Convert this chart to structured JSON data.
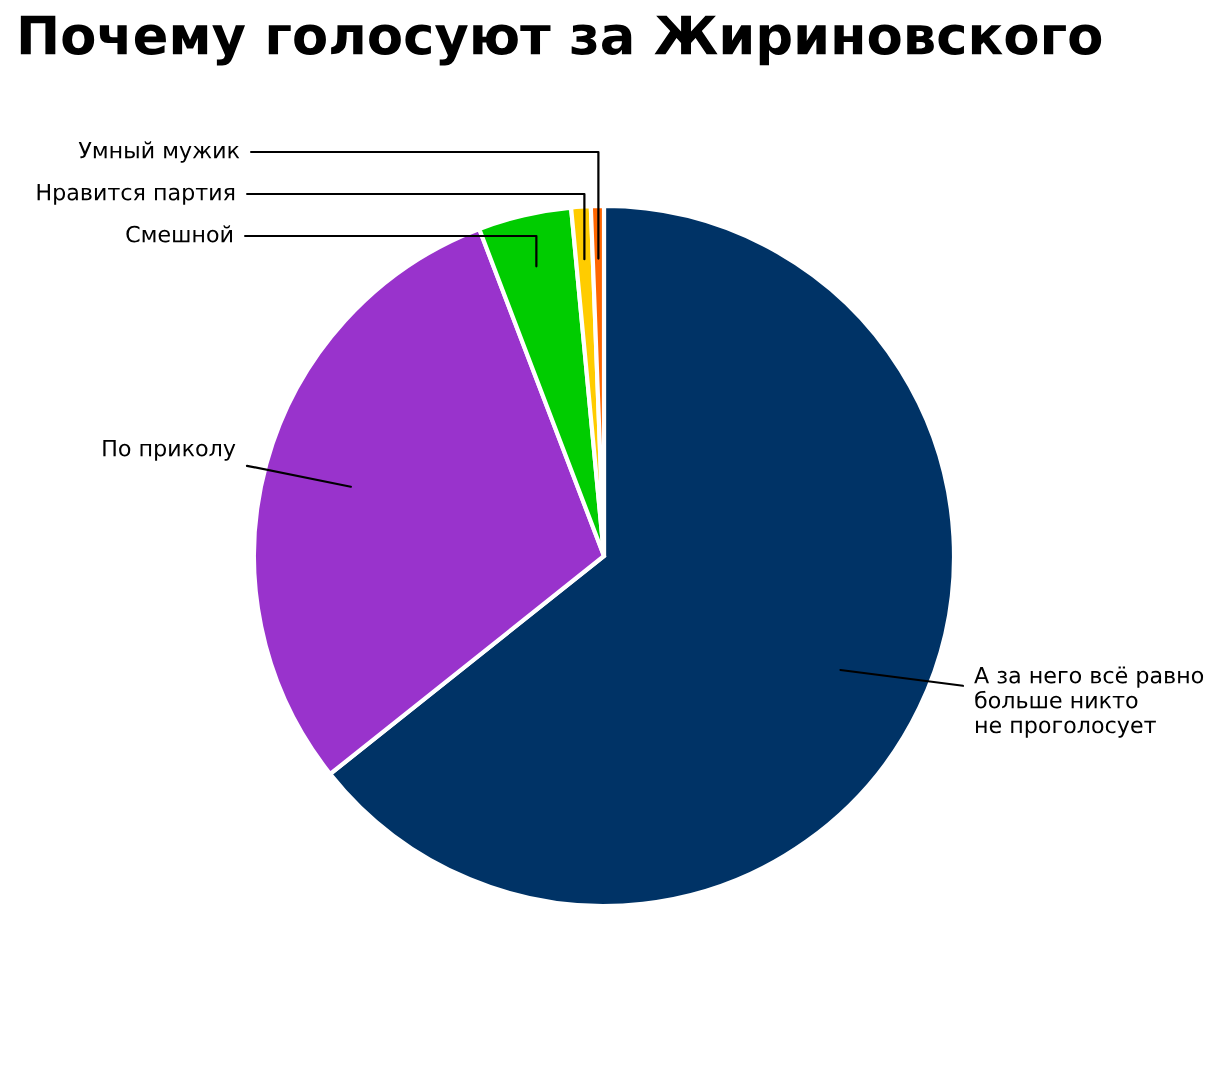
{
  "chart_data": {
    "type": "pie",
    "title": "Почему голосуют за Жириновского",
    "categories": [
      "А за него всё равно\nбольше никто\nне проголосует",
      "По приколу",
      "Смешной",
      "Нравится партия",
      "Умный мужик"
    ],
    "values": [
      64.3,
      29.9,
      4.3,
      0.9,
      0.6
    ],
    "colors": [
      "#003366",
      "#9933cc",
      "#00cc00",
      "#ffcc00",
      "#ff6600"
    ]
  }
}
